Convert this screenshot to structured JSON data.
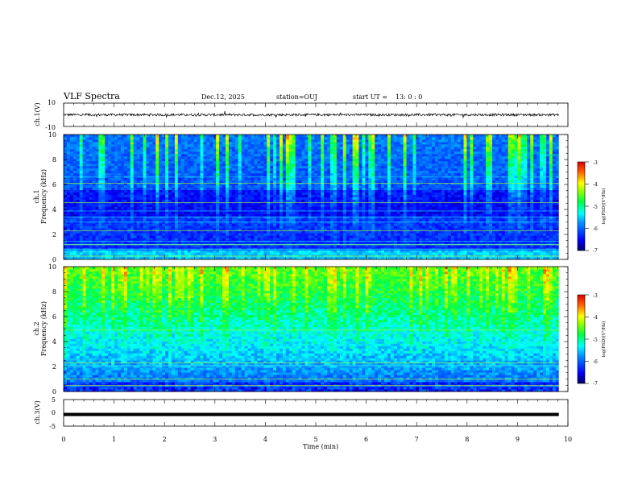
{
  "header": {
    "title": "VLF Spectra",
    "date": "Dec.12, 2025",
    "station": "station=OUJ",
    "start_label": "start  UT = ",
    "start_time": "13: 0  : 0"
  },
  "chart_data": [
    {
      "type": "line",
      "name": "ch1-waveform",
      "ylabel": "ch.1(V)",
      "ylim": [
        -10,
        10
      ],
      "yticks": [
        "10",
        "-10"
      ],
      "xlim": [
        0,
        10
      ],
      "trace_x_end": 9.82,
      "trace_center": 0,
      "trace_noise_amplitude": 1.0
    },
    {
      "type": "heatmap",
      "name": "ch1-spectrogram",
      "ylabel": "Frequency (kHz)",
      "channel_label": "ch.1",
      "ylim": [
        0,
        10
      ],
      "yticks": [
        "0",
        "2",
        "4",
        "6",
        "8",
        "10"
      ],
      "xlim": [
        0,
        10
      ],
      "data_x_end": 9.82,
      "colorbar": {
        "label": "log(PSD)(V²/Hz)",
        "range": [
          -7,
          -3
        ],
        "ticks": [
          "-3",
          "-4",
          "-5",
          "-6",
          "-7"
        ]
      }
    },
    {
      "type": "heatmap",
      "name": "ch2-spectrogram",
      "ylabel": "Frequency (kHz)",
      "channel_label": "ch.2",
      "ylim": [
        0,
        10
      ],
      "yticks": [
        "0",
        "2",
        "4",
        "6",
        "8",
        "10"
      ],
      "xlim": [
        0,
        10
      ],
      "data_x_end": 9.82,
      "colorbar": {
        "label": "log(PSD)(V²/Hz)",
        "range": [
          -7,
          -3
        ],
        "ticks": [
          "-3",
          "-4",
          "-5",
          "-6",
          "-7"
        ]
      }
    },
    {
      "type": "line",
      "name": "ch3-waveform",
      "ylabel": "ch.3(V)",
      "ylim": [
        -5,
        5
      ],
      "yticks": [
        "5",
        "0",
        "-5"
      ],
      "xlim": [
        0,
        10
      ],
      "trace_x_end": 9.82,
      "trace_center": -0.6
    }
  ],
  "xaxis": {
    "label": "Time (min)",
    "ticks": [
      "0",
      "1",
      "2",
      "3",
      "4",
      "5",
      "6",
      "7",
      "8",
      "9",
      "10"
    ]
  }
}
